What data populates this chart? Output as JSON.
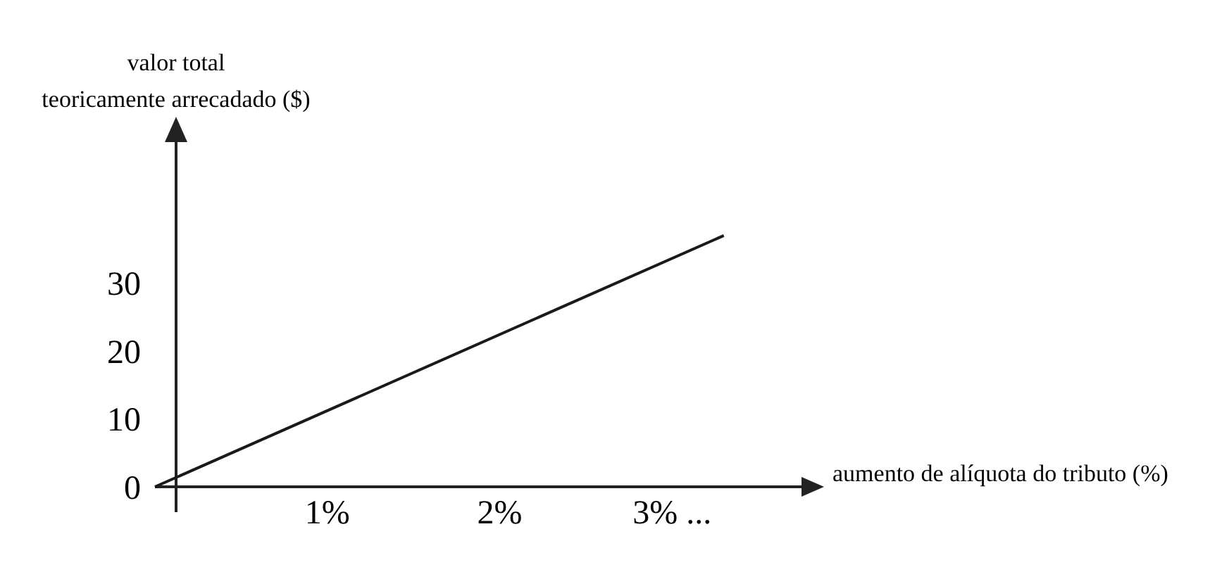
{
  "chart_data": {
    "type": "line",
    "ylabel": "valor total\nteoricamente arrecadado ($)",
    "xlabel": "aumento de alíquota do tributo (%)",
    "x": [
      0,
      3.3
    ],
    "series": [
      {
        "color": "#1a1a1a",
        "values": [
          0,
          37
        ]
      }
    ],
    "xlim": [
      0,
      3.8
    ],
    "xticks": [
      {
        "value": 1,
        "label": "1%"
      },
      {
        "value": 2,
        "label": "2%"
      },
      {
        "value": 3,
        "label": "3% ..."
      }
    ],
    "ylim": [
      0,
      52
    ],
    "yticks": [
      0,
      10,
      20,
      30
    ],
    "grid": false,
    "marker": "none",
    "line_style": "solid"
  }
}
